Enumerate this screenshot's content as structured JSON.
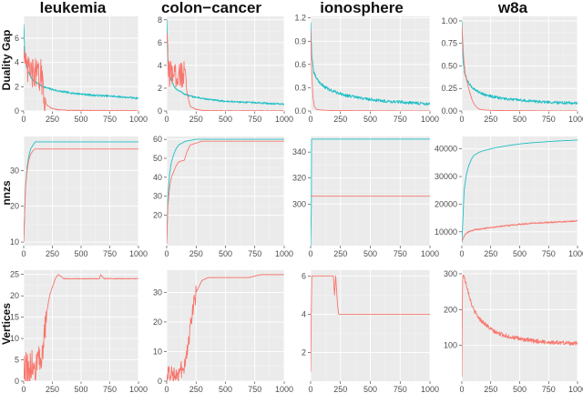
{
  "chart_data": {
    "type": "line",
    "layout": "facet-grid",
    "columns": [
      "leukemia",
      "colon−cancer",
      "ionosphere",
      "w8a"
    ],
    "rows": [
      "Duality Gap",
      "nnzs",
      "Vertices"
    ],
    "series_colors": {
      "teal": "#1fbfc4",
      "salmon": "#f8766d"
    },
    "x_ticks": [
      "0",
      "250",
      "500",
      "750",
      "1000"
    ],
    "xlim": [
      0,
      1000
    ],
    "panels": [
      {
        "row": 0,
        "col": 0,
        "ylim": [
          0,
          7.8
        ],
        "y_ticks": [
          {
            "v": 0,
            "label": "0"
          },
          {
            "v": 2,
            "label": "2"
          },
          {
            "v": 4,
            "label": "4"
          },
          {
            "v": 6,
            "label": "6"
          }
        ],
        "series": [
          {
            "name": "teal",
            "color": "#1fbfc4",
            "x": [
              0,
              10,
              25,
              50,
              75,
              100,
              150,
              200,
              300,
              400,
              500,
              600,
              700,
              800,
              900,
              1000
            ],
            "y": [
              7.2,
              4.5,
              3.6,
              3.0,
              2.6,
              2.4,
              2.1,
              1.9,
              1.65,
              1.5,
              1.4,
              1.3,
              1.25,
              1.2,
              1.12,
              1.05
            ],
            "noise": 0.08
          },
          {
            "name": "salmon",
            "color": "#f8766d",
            "x": [
              0,
              10,
              25,
              50,
              75,
              100,
              125,
              150,
              175,
              200,
              250,
              300,
              400,
              1000
            ],
            "y": [
              6.0,
              4.0,
              3.2,
              3.5,
              3.0,
              3.2,
              2.8,
              3.0,
              1.5,
              0.5,
              0.2,
              0.1,
              0.05,
              0.02
            ],
            "noise": 1.3,
            "noise_until": 190
          }
        ]
      },
      {
        "row": 0,
        "col": 1,
        "ylim": [
          0,
          8.3
        ],
        "y_ticks": [
          {
            "v": 0,
            "label": "0"
          },
          {
            "v": 2,
            "label": "2"
          },
          {
            "v": 4,
            "label": "4"
          },
          {
            "v": 6,
            "label": "6"
          },
          {
            "v": 8,
            "label": "8"
          }
        ],
        "series": [
          {
            "name": "teal",
            "color": "#1fbfc4",
            "x": [
              0,
              10,
              25,
              50,
              75,
              100,
              150,
              200,
              300,
              400,
              500,
              600,
              700,
              800,
              900,
              1000
            ],
            "y": [
              8.1,
              4.0,
              3.0,
              2.4,
              2.0,
              1.8,
              1.5,
              1.3,
              1.1,
              0.95,
              0.85,
              0.8,
              0.75,
              0.7,
              0.65,
              0.6
            ],
            "noise": 0.08
          },
          {
            "name": "salmon",
            "color": "#f8766d",
            "x": [
              0,
              10,
              25,
              50,
              75,
              100,
              125,
              150,
              175,
              200,
              250,
              300,
              400,
              1000
            ],
            "y": [
              6.5,
              4.3,
              3.2,
              3.6,
              3.0,
              3.4,
              3.1,
              3.3,
              1.5,
              0.4,
              0.15,
              0.05,
              0.02,
              0.01
            ],
            "noise": 1.2,
            "noise_until": 165
          }
        ]
      },
      {
        "row": 0,
        "col": 2,
        "ylim": [
          0,
          1.22
        ],
        "y_ticks": [
          {
            "v": 0.0,
            "label": "0.0"
          },
          {
            "v": 0.3,
            "label": "0.3"
          },
          {
            "v": 0.6,
            "label": "0.6"
          },
          {
            "v": 0.9,
            "label": "0.9"
          },
          {
            "v": 1.2,
            "label": "1.2"
          }
        ],
        "series": [
          {
            "name": "teal",
            "color": "#1fbfc4",
            "x": [
              0,
              10,
              25,
              50,
              75,
              100,
              150,
              200,
              300,
              400,
              500,
              600,
              700,
              800,
              900,
              1000
            ],
            "y": [
              1.15,
              0.7,
              0.5,
              0.42,
              0.37,
              0.33,
              0.28,
              0.25,
              0.2,
              0.17,
              0.15,
              0.13,
              0.12,
              0.11,
              0.1,
              0.09
            ],
            "noise": 0.02
          },
          {
            "name": "salmon",
            "color": "#f8766d",
            "x": [
              0,
              8,
              18,
              30,
              50,
              100,
              200,
              1000
            ],
            "y": [
              1.05,
              0.55,
              0.2,
              0.06,
              0.02,
              0.01,
              0.005,
              0.0
            ]
          }
        ]
      },
      {
        "row": 0,
        "col": 3,
        "ylim": [
          0,
          1.05
        ],
        "y_ticks": [
          {
            "v": 0.0,
            "label": "0.00"
          },
          {
            "v": 0.25,
            "label": "0.25"
          },
          {
            "v": 0.5,
            "label": "0.50"
          },
          {
            "v": 0.75,
            "label": "0.75"
          },
          {
            "v": 1.0,
            "label": "1.00"
          }
        ],
        "series": [
          {
            "name": "teal",
            "color": "#1fbfc4",
            "x": [
              0,
              10,
              25,
              50,
              75,
              100,
              150,
              200,
              300,
              400,
              500,
              600,
              700,
              800,
              900,
              1000
            ],
            "y": [
              1.0,
              0.55,
              0.42,
              0.33,
              0.28,
              0.25,
              0.21,
              0.18,
              0.15,
              0.13,
              0.12,
              0.11,
              0.1,
              0.095,
              0.09,
              0.085
            ],
            "noise": 0.015
          },
          {
            "name": "salmon",
            "color": "#f8766d",
            "x": [
              0,
              15,
              30,
              50,
              70,
              90,
              110,
              130,
              150,
              200,
              300,
              1000
            ],
            "y": [
              0.95,
              0.6,
              0.4,
              0.3,
              0.2,
              0.12,
              0.07,
              0.04,
              0.02,
              0.01,
              0.005,
              0.0
            ]
          }
        ]
      },
      {
        "row": 1,
        "col": 0,
        "ylim": [
          9,
          39.5
        ],
        "y_ticks": [
          {
            "v": 10,
            "label": "10"
          },
          {
            "v": 20,
            "label": "20"
          },
          {
            "v": 30,
            "label": "30"
          }
        ],
        "series": [
          {
            "name": "teal",
            "color": "#1fbfc4",
            "x": [
              0,
              15,
              30,
              45,
              60,
              80,
              100,
              150,
              1000
            ],
            "y": [
              10,
              25,
              31,
              34,
              36,
              37,
              38,
              38,
              38
            ]
          },
          {
            "name": "salmon",
            "color": "#f8766d",
            "x": [
              0,
              15,
              30,
              45,
              60,
              80,
              100,
              1000
            ],
            "y": [
              10,
              25,
              30,
              33,
              34.5,
              35.5,
              36,
              36
            ]
          }
        ]
      },
      {
        "row": 1,
        "col": 1,
        "ylim": [
          4,
          61.5
        ],
        "y_ticks": [
          {
            "v": 20,
            "label": "20"
          },
          {
            "v": 30,
            "label": "30"
          },
          {
            "v": 40,
            "label": "40"
          },
          {
            "v": 50,
            "label": "50"
          },
          {
            "v": 60,
            "label": "60"
          }
        ],
        "series": [
          {
            "name": "teal",
            "color": "#1fbfc4",
            "x": [
              0,
              10,
              25,
              40,
              60,
              80,
              100,
              130,
              160,
              200,
              250,
              300,
              1000
            ],
            "y": [
              5,
              30,
              42,
              48,
              52,
              55,
              57,
              58,
              59,
              59.5,
              60,
              60,
              60
            ]
          },
          {
            "name": "salmon",
            "color": "#f8766d",
            "x": [
              0,
              10,
              25,
              40,
              60,
              80,
              100,
              120,
              150,
              170,
              200,
              250,
              300,
              1000
            ],
            "y": [
              5,
              25,
              35,
              40,
              43,
              46,
              48,
              48.5,
              49,
              53,
              57,
              58,
              59,
              59
            ]
          }
        ]
      },
      {
        "row": 1,
        "col": 2,
        "ylim": [
          268,
          352
        ],
        "y_ticks": [
          {
            "v": 300,
            "label": "300"
          },
          {
            "v": 320,
            "label": "320"
          },
          {
            "v": 340,
            "label": "340"
          }
        ],
        "series": [
          {
            "name": "teal",
            "color": "#1fbfc4",
            "x": [
              0,
              6,
              8,
              1000
            ],
            "y": [
              268,
              300,
              350,
              350
            ]
          },
          {
            "name": "salmon",
            "color": "#f8766d",
            "x": [
              0,
              1000
            ],
            "y": [
              306,
              306
            ]
          }
        ]
      },
      {
        "row": 1,
        "col": 3,
        "ylim": [
          5000,
          44500
        ],
        "y_ticks": [
          {
            "v": 10000,
            "label": "10000"
          },
          {
            "v": 20000,
            "label": "20000"
          },
          {
            "v": 30000,
            "label": "30000"
          },
          {
            "v": 40000,
            "label": "40000"
          }
        ],
        "series": [
          {
            "name": "teal",
            "color": "#1fbfc4",
            "x": [
              0,
              20,
              40,
              60,
              80,
              100,
              150,
              200,
              300,
              400,
              500,
              600,
              700,
              800,
              900,
              1000
            ],
            "y": [
              6000,
              25000,
              31000,
              34000,
              36000,
              37500,
              38800,
              39500,
              40500,
              41200,
              41800,
              42200,
              42500,
              42800,
              43000,
              43200
            ]
          },
          {
            "name": "salmon",
            "color": "#f8766d",
            "x": [
              0,
              20,
              40,
              60,
              80,
              100,
              150,
              200,
              300,
              400,
              500,
              600,
              700,
              800,
              900,
              1000
            ],
            "y": [
              6500,
              8500,
              9500,
              10000,
              10300,
              10600,
              11000,
              11300,
              11800,
              12300,
              12700,
              13100,
              13300,
              13500,
              13700,
              13900
            ],
            "noise": 250
          }
        ]
      },
      {
        "row": 2,
        "col": 0,
        "ylim": [
          0,
          26
        ],
        "y_ticks": [
          {
            "v": 0,
            "label": "0"
          },
          {
            "v": 5,
            "label": "5"
          },
          {
            "v": 10,
            "label": "10"
          },
          {
            "v": 15,
            "label": "15"
          },
          {
            "v": 20,
            "label": "20"
          },
          {
            "v": 25,
            "label": "25"
          }
        ],
        "series": [
          {
            "name": "salmon",
            "color": "#f8766d",
            "x": [
              0,
              25,
              50,
              75,
              100,
              125,
              150,
              175,
              200,
              225,
              250,
              275,
              300,
              350,
              400,
              500,
              600,
              660,
              670,
              700,
              800,
              900,
              1000
            ],
            "y": [
              2,
              3,
              2,
              4,
              3,
              5,
              3,
              10,
              16,
              20,
              22,
              24,
              25,
              24,
              24,
              24,
              24,
              24,
              25,
              24,
              24,
              24,
              24
            ],
            "noise": 4,
            "noise_until": 200
          }
        ]
      },
      {
        "row": 2,
        "col": 1,
        "ylim": [
          0,
          37.5
        ],
        "y_ticks": [
          {
            "v": 0,
            "label": "0"
          },
          {
            "v": 10,
            "label": "10"
          },
          {
            "v": 20,
            "label": "20"
          },
          {
            "v": 30,
            "label": "30"
          }
        ],
        "series": [
          {
            "name": "salmon",
            "color": "#f8766d",
            "x": [
              0,
              25,
              50,
              75,
              100,
              125,
              150,
              175,
              200,
              225,
              250,
              300,
              350,
              400,
              500,
              600,
              700,
              800,
              1000
            ],
            "y": [
              2,
              3,
              2,
              3,
              3,
              4,
              5,
              10,
              18,
              25,
              30,
              34,
              35,
              35,
              35,
              35,
              35,
              36,
              36
            ],
            "noise": 3,
            "noise_until": 250
          }
        ]
      },
      {
        "row": 2,
        "col": 2,
        "ylim": [
          0.5,
          6.3
        ],
        "y_ticks": [
          {
            "v": 2,
            "label": "2"
          },
          {
            "v": 4,
            "label": "4"
          },
          {
            "v": 6,
            "label": "6"
          }
        ],
        "series": [
          {
            "name": "salmon",
            "color": "#f8766d",
            "x": [
              0,
              5,
              10,
              190,
              200,
              210,
              220,
              225,
              235,
              1000
            ],
            "y": [
              1,
              4,
              6,
              6,
              5,
              6,
              5,
              4.5,
              4,
              4
            ]
          }
        ]
      },
      {
        "row": 2,
        "col": 3,
        "ylim": [
          0,
          310
        ],
        "y_ticks": [
          {
            "v": 100,
            "label": "100"
          },
          {
            "v": 200,
            "label": "200"
          },
          {
            "v": 300,
            "label": "300"
          }
        ],
        "series": [
          {
            "name": "salmon",
            "color": "#f8766d",
            "x": [
              0,
              5,
              10,
              20,
              40,
              60,
              80,
              100,
              150,
              200,
              250,
              300,
              400,
              500,
              600,
              700,
              800,
              900,
              1000
            ],
            "y": [
              10,
              280,
              300,
              290,
              270,
              245,
              220,
              200,
              175,
              160,
              145,
              135,
              125,
              118,
              113,
              110,
              108,
              107,
              105
            ],
            "noise": 6
          }
        ]
      }
    ]
  }
}
